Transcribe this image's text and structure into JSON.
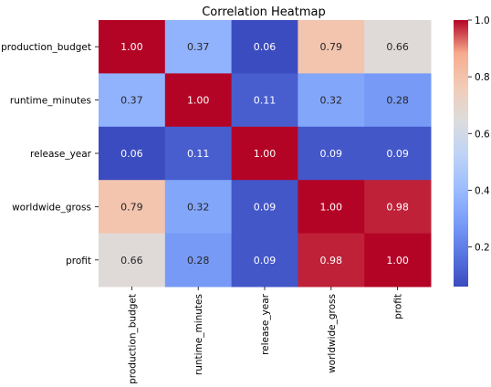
{
  "chart_data": {
    "type": "heatmap",
    "title": "Correlation Heatmap",
    "xlabel": "",
    "ylabel": "",
    "x_categories": [
      "production_budget",
      "runtime_minutes",
      "release_year",
      "worldwide_gross",
      "profit"
    ],
    "y_categories": [
      "production_budget",
      "runtime_minutes",
      "release_year",
      "worldwide_gross",
      "profit"
    ],
    "values": [
      [
        1.0,
        0.37,
        0.06,
        0.79,
        0.66
      ],
      [
        0.37,
        1.0,
        0.11,
        0.32,
        0.28
      ],
      [
        0.06,
        0.11,
        1.0,
        0.09,
        0.09
      ],
      [
        0.79,
        0.32,
        0.09,
        1.0,
        0.98
      ],
      [
        0.66,
        0.28,
        0.09,
        0.98,
        1.0
      ]
    ],
    "cell_labels": [
      [
        "1.00",
        "0.37",
        "0.06",
        "0.79",
        "0.66"
      ],
      [
        "0.37",
        "1.00",
        "0.11",
        "0.32",
        "0.28"
      ],
      [
        "0.06",
        "0.11",
        "1.00",
        "0.09",
        "0.09"
      ],
      [
        "0.79",
        "0.32",
        "0.09",
        "1.00",
        "0.98"
      ],
      [
        "0.66",
        "0.28",
        "0.09",
        "0.98",
        "1.00"
      ]
    ],
    "colormap": "coolwarm",
    "vmin": 0.06,
    "vmax": 1.0,
    "colorbar_ticks": [
      "0.2",
      "0.4",
      "0.6",
      "0.8",
      "1.0"
    ],
    "colorbar_tick_values": [
      0.2,
      0.4,
      0.6,
      0.8,
      1.0
    ],
    "grid": false,
    "legend": "colorbar-right"
  }
}
